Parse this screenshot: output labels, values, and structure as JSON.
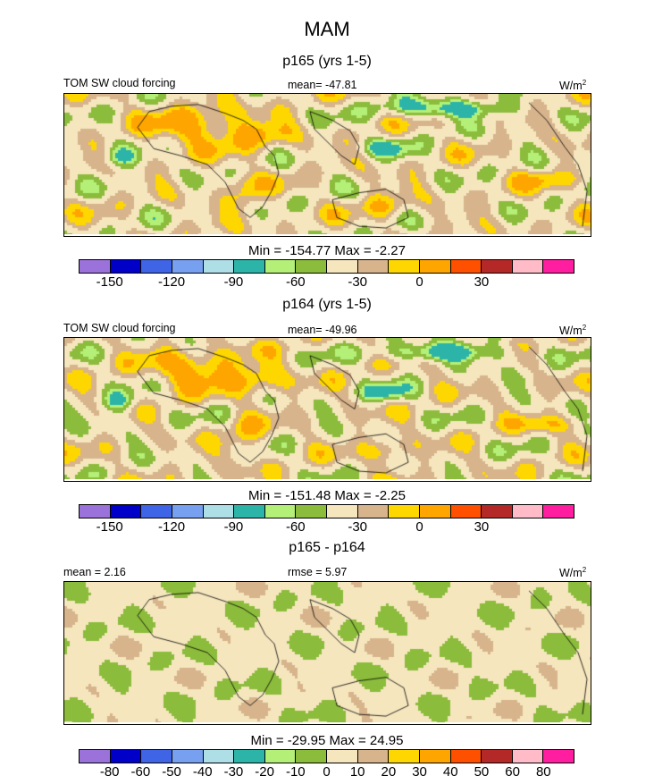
{
  "title": "MAM",
  "chart_data": [
    {
      "type": "heatmap",
      "title": "p165 (yrs 1-5)",
      "left_label": "TOM SW cloud forcing",
      "center_label": "mean= -47.81",
      "units": "W/m",
      "units_sup": "2",
      "minmax": "Min = -154.77 Max =  -2.27",
      "colorbar": {
        "colors": [
          "#9b72d9",
          "#0000c8",
          "#3f64e6",
          "#78a0f0",
          "#aedee6",
          "#2db4a8",
          "#b4f078",
          "#8cbc3c",
          "#f5e6be",
          "#d7b48c",
          "#ffd700",
          "#ffa500",
          "#ff5000",
          "#b42828",
          "#ffbcc8",
          "#ff1ea0"
        ],
        "ticks": [
          "-150",
          "-120",
          "-90",
          "-60",
          "-30",
          "0",
          "30"
        ],
        "tick_boundaries": [
          1,
          3,
          5,
          7,
          9,
          11,
          13
        ]
      }
    },
    {
      "type": "heatmap",
      "title": "p164 (yrs 1-5)",
      "left_label": "TOM SW cloud forcing",
      "center_label": "mean= -49.96",
      "units": "W/m",
      "units_sup": "2",
      "minmax": "Min = -151.48 Max =  -2.25",
      "colorbar": {
        "colors": [
          "#9b72d9",
          "#0000c8",
          "#3f64e6",
          "#78a0f0",
          "#aedee6",
          "#2db4a8",
          "#b4f078",
          "#8cbc3c",
          "#f5e6be",
          "#d7b48c",
          "#ffd700",
          "#ffa500",
          "#ff5000",
          "#b42828",
          "#ffbcc8",
          "#ff1ea0"
        ],
        "ticks": [
          "-150",
          "-120",
          "-90",
          "-60",
          "-30",
          "0",
          "30"
        ],
        "tick_boundaries": [
          1,
          3,
          5,
          7,
          9,
          11,
          13
        ]
      }
    },
    {
      "type": "heatmap",
      "title": "p165 - p164",
      "left_label": "mean =   2.16",
      "center_label": "rmse =   5.97",
      "units": "W/m",
      "units_sup": "2",
      "minmax": "Min = -29.95 Max =  24.95",
      "colorbar": {
        "colors": [
          "#9b72d9",
          "#0000c8",
          "#3f64e6",
          "#78a0f0",
          "#aedee6",
          "#2db4a8",
          "#b4f078",
          "#8cbc3c",
          "#f5e6be",
          "#d7b48c",
          "#ffd700",
          "#ffa500",
          "#ff5000",
          "#b42828",
          "#ffbcc8",
          "#ff1ea0"
        ],
        "ticks": [
          "-80",
          "-60",
          "-50",
          "-40",
          "-30",
          "-20",
          "-10",
          "0",
          "10",
          "20",
          "30",
          "40",
          "50",
          "60",
          "80"
        ],
        "tick_boundaries": [
          1,
          2,
          3,
          4,
          5,
          6,
          7,
          8,
          9,
          10,
          11,
          12,
          13,
          14,
          15
        ]
      }
    }
  ]
}
